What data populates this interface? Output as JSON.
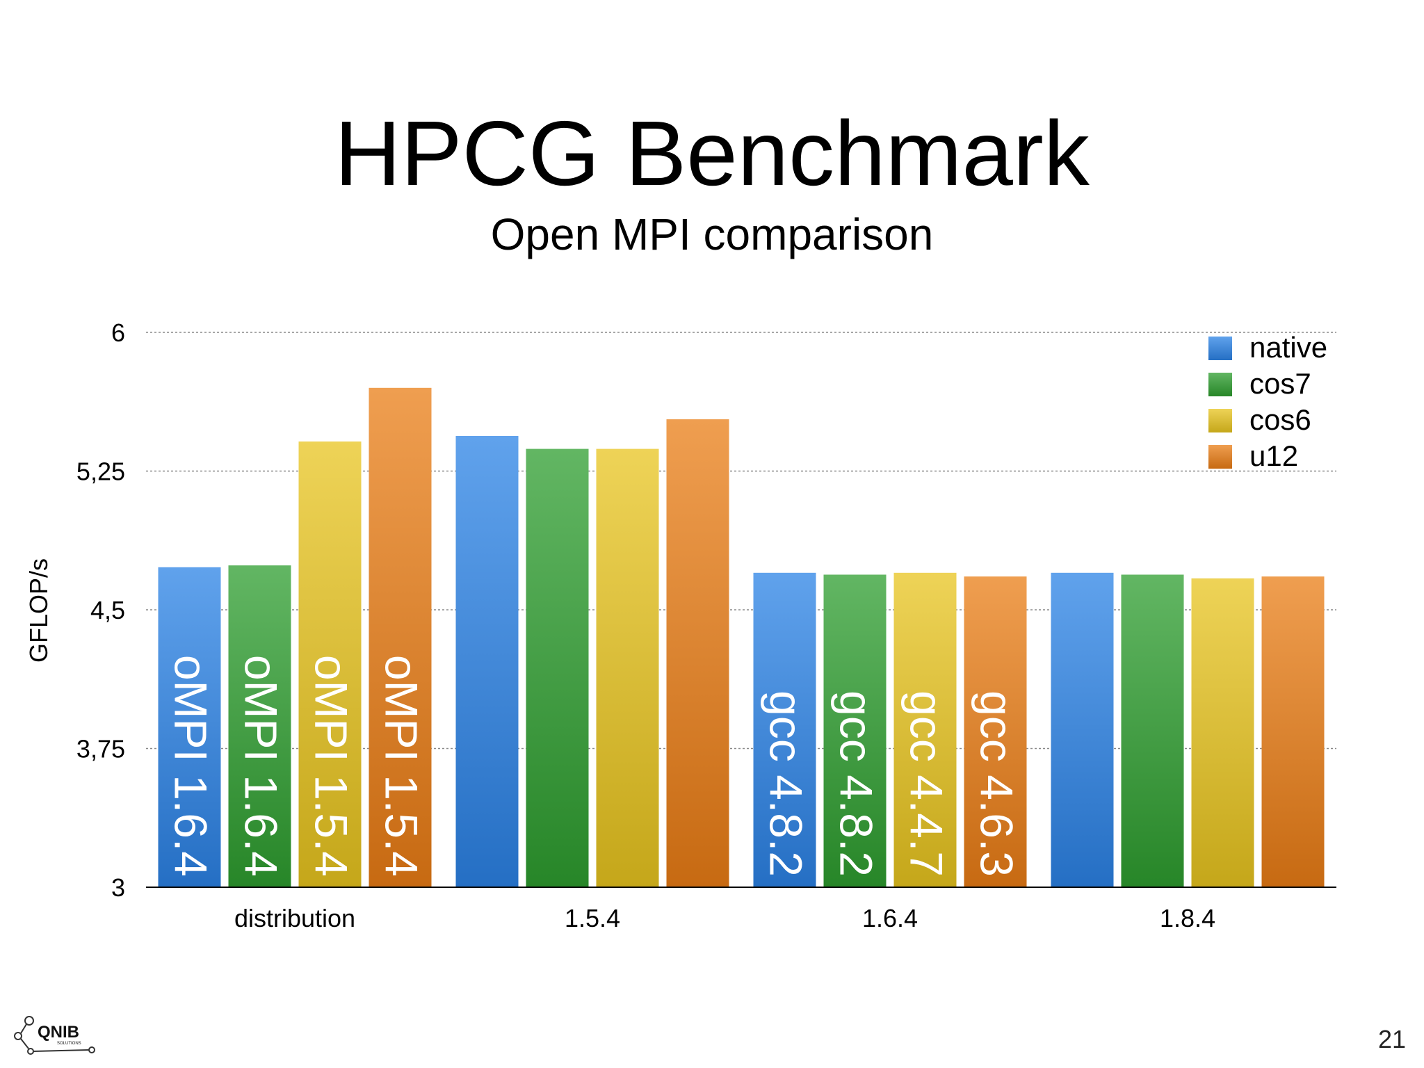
{
  "slide": {
    "title": "HPCG Benchmark",
    "subtitle": "Open MPI comparison",
    "page_number": "21",
    "logo_text": "QNIB",
    "logo_subtext": "SOLUTIONS"
  },
  "colors": {
    "native": "#2b83e6",
    "cos7": "#2e9e2f",
    "cos6": "#e8c41f",
    "u12": "#ea7d15"
  },
  "chart_data": {
    "type": "bar",
    "title": "HPCG Benchmark",
    "subtitle": "Open MPI comparison",
    "ylabel": "GFLOP/s",
    "xlabel": "",
    "ylim": [
      3,
      6
    ],
    "yticks": [
      "3",
      "3,75",
      "4,5",
      "5,25",
      "6"
    ],
    "ytick_values": [
      3,
      3.75,
      4.5,
      5.25,
      6
    ],
    "grid": true,
    "legend_position": "top-right",
    "categories": [
      "distribution",
      "1.5.4",
      "1.6.4",
      "1.8.4"
    ],
    "series": [
      {
        "name": "native",
        "values": [
          4.73,
          5.44,
          4.7,
          4.7
        ]
      },
      {
        "name": "cos7",
        "values": [
          4.74,
          5.37,
          4.69,
          4.69
        ]
      },
      {
        "name": "cos6",
        "values": [
          5.41,
          5.37,
          4.7,
          4.67
        ]
      },
      {
        "name": "u12",
        "values": [
          5.7,
          5.53,
          4.68,
          4.68
        ]
      }
    ],
    "bar_labels": [
      [
        "oMPI 1.6.4",
        "",
        "gcc 4.8.2",
        ""
      ],
      [
        "oMPI 1.6.4",
        "",
        "gcc 4.8.2",
        ""
      ],
      [
        "oMPI 1.5.4",
        "",
        "gcc 4.4.7",
        ""
      ],
      [
        "oMPI 1.5.4",
        "",
        "gcc 4.6.3",
        ""
      ]
    ]
  }
}
